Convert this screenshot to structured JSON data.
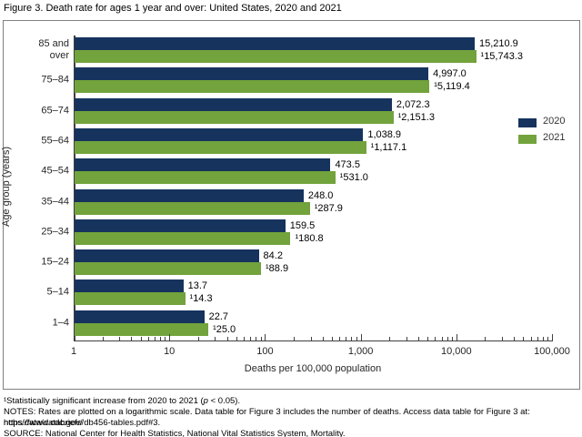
{
  "title": "Figure 3. Death rate for ages 1 year and over: United States, 2020 and 2021",
  "chart_data": {
    "type": "bar",
    "orientation": "horizontal",
    "x_scale": "log10",
    "xlim": [
      1,
      100000
    ],
    "grid": false,
    "xlabel": "Deaths per 100,000 population",
    "ylabel": "Age group (years)",
    "xticks": {
      "labels": [
        "1",
        "10",
        "100",
        "1,000",
        "10,000",
        "100,000"
      ],
      "values": [
        1,
        10,
        100,
        1000,
        10000,
        100000
      ]
    },
    "categories": [
      "85 and\nover",
      "75–84",
      "65–74",
      "55–64",
      "45–54",
      "35–44",
      "25–34",
      "15–24",
      "5–14",
      "1–4"
    ],
    "series": [
      {
        "name": "2020",
        "color": "#16335E",
        "values": [
          15210.9,
          4997.0,
          2072.3,
          1038.9,
          473.5,
          248.0,
          159.5,
          84.2,
          13.7,
          22.7
        ],
        "labels": [
          "15,210.9",
          "4,997.0",
          "2,072.3",
          "1,038.9",
          "473.5",
          "248.0",
          "159.5",
          "84.2",
          "13.7",
          "22.7"
        ]
      },
      {
        "name": "2021",
        "color": "#72A33C",
        "values": [
          15743.3,
          5119.4,
          2151.3,
          1117.1,
          531.0,
          287.9,
          180.8,
          88.9,
          14.3,
          25.0
        ],
        "labels": [
          "¹15,743.3",
          "¹5,119.4",
          "¹2,151.3",
          "¹1,117.1",
          "¹531.0",
          "¹287.9",
          "¹180.8",
          "¹88.9",
          "¹14.3",
          "¹25.0"
        ]
      }
    ],
    "legend_position": "inside-right"
  },
  "footnotes": {
    "significance": {
      "pre": "¹Statistically significant increase from 2020 to 2021 (",
      "p": "p",
      "post": " < 0.05)."
    },
    "notes_line1": "NOTES: Rates are plotted on a logarithmic scale. Data table for Figure 3 includes the number of deaths. Access data table for Figure 3 at: https://www.cdc.gov/",
    "notes_line2": "nchs/data/databriefs/db456-tables.pdf#3.",
    "source": "SOURCE: National Center for Health Statistics, National Vital Statistics System, Mortality."
  }
}
